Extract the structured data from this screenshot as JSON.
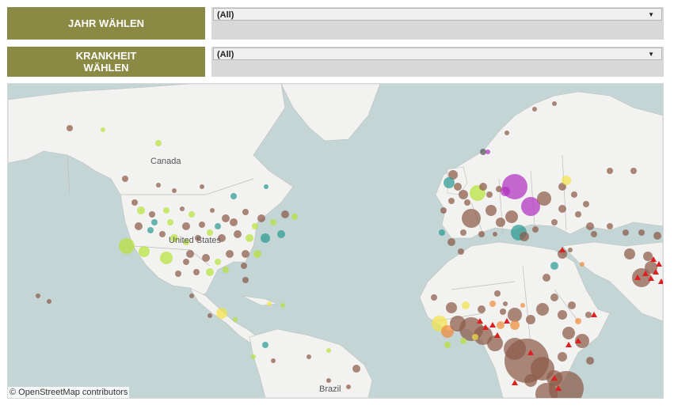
{
  "filters": [
    {
      "label": "JAHR WÄHLEN",
      "value": "(All)"
    },
    {
      "label": "KRANKHEIT\nWÄHLEN",
      "value": "(All)"
    }
  ],
  "map": {
    "attribution": "© OpenStreetMap contributors",
    "place_labels": {
      "canada": "Canada",
      "united_states": "United States",
      "brazil": "Brazil"
    },
    "colors": {
      "water": "#c3d5d5",
      "land": "#f2f2f0",
      "border": "#bdbdbd",
      "brown": "#8b5a48",
      "lime": "#b7e23a",
      "teal": "#2b9a94",
      "purple": "#b02fc0",
      "yellow": "#f2e24a",
      "orange": "#f08a3a",
      "red": "#dd1f1f",
      "darkgreen": "#3a7a3a",
      "grey": "#555555"
    },
    "icons": {
      "dropdown": "chevron-down-icon",
      "markers": [
        "circle",
        "triangle"
      ]
    }
  }
}
